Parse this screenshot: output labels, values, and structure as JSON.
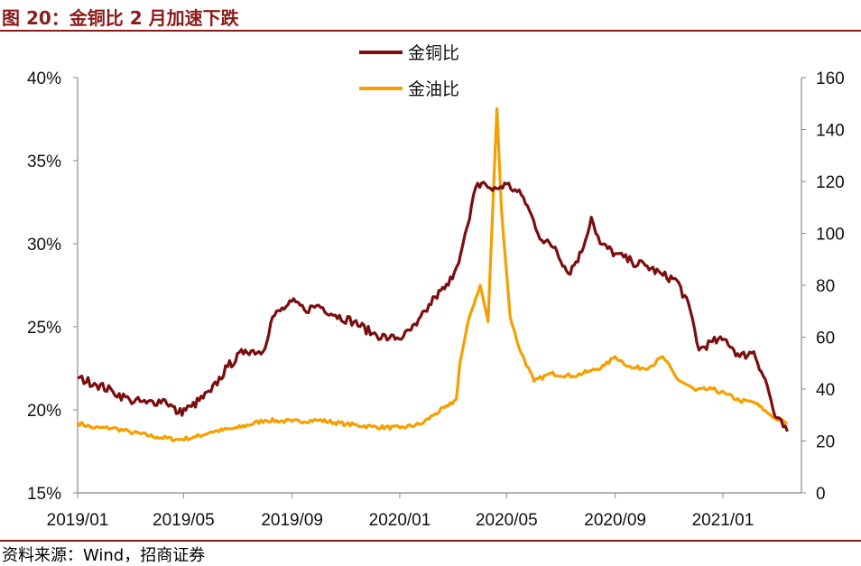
{
  "header": {
    "title": "图 20：金铜比 2 月加速下跌"
  },
  "footer": {
    "source": "资料来源：Wind，招商证券"
  },
  "colors": {
    "accent": "#8B1A1A",
    "gold_copper": "#7B0E0E",
    "gold_oil": "#F5A000"
  },
  "chart_data": {
    "type": "line",
    "x_ticks": [
      "2019/01",
      "2019/05",
      "2019/09",
      "2020/01",
      "2020/05",
      "2020/09",
      "2021/01"
    ],
    "x_range": [
      "2019-01-01",
      "2021-03-31"
    ],
    "y_left": {
      "ticks": [
        "15%",
        "20%",
        "25%",
        "30%",
        "35%",
        "40%"
      ],
      "range": [
        15,
        40
      ]
    },
    "y_right": {
      "ticks": [
        "0",
        "20",
        "40",
        "60",
        "80",
        "100",
        "120",
        "140",
        "160"
      ],
      "range": [
        0,
        160
      ]
    },
    "legend": {
      "position": "top-center"
    },
    "series": [
      {
        "name": "金铜比",
        "axis": "left",
        "points": [
          [
            "2019-01-01",
            21.9
          ],
          [
            "2019-01-20",
            21.6
          ],
          [
            "2019-02-10",
            21.1
          ],
          [
            "2019-03-01",
            20.6
          ],
          [
            "2019-03-20",
            20.4
          ],
          [
            "2019-04-10",
            20.6
          ],
          [
            "2019-04-25",
            19.8
          ],
          [
            "2019-05-10",
            20.2
          ],
          [
            "2019-06-01",
            21.1
          ],
          [
            "2019-06-20",
            22.6
          ],
          [
            "2019-07-10",
            23.6
          ],
          [
            "2019-07-30",
            23.5
          ],
          [
            "2019-08-10",
            25.6
          ],
          [
            "2019-08-25",
            26.2
          ],
          [
            "2019-09-05",
            26.5
          ],
          [
            "2019-09-15",
            26.0
          ],
          [
            "2019-10-01",
            26.3
          ],
          [
            "2019-10-20",
            25.7
          ],
          [
            "2019-11-10",
            25.3
          ],
          [
            "2019-12-01",
            24.6
          ],
          [
            "2019-12-20",
            24.3
          ],
          [
            "2020-01-05",
            24.4
          ],
          [
            "2020-01-20",
            25.1
          ],
          [
            "2020-02-10",
            26.8
          ],
          [
            "2020-02-25",
            27.5
          ],
          [
            "2020-03-10",
            29.4
          ],
          [
            "2020-03-20",
            31.5
          ],
          [
            "2020-03-27",
            33.4
          ],
          [
            "2020-04-05",
            33.7
          ],
          [
            "2020-04-15",
            33.2
          ],
          [
            "2020-05-01",
            33.6
          ],
          [
            "2020-05-20",
            32.8
          ],
          [
            "2020-06-10",
            30.2
          ],
          [
            "2020-06-25",
            29.8
          ],
          [
            "2020-07-10",
            28.2
          ],
          [
            "2020-07-25",
            29.5
          ],
          [
            "2020-08-05",
            31.6
          ],
          [
            "2020-08-15",
            30.0
          ],
          [
            "2020-09-01",
            29.4
          ],
          [
            "2020-09-20",
            28.9
          ],
          [
            "2020-10-05",
            28.7
          ],
          [
            "2020-10-25",
            28.1
          ],
          [
            "2020-11-10",
            27.8
          ],
          [
            "2020-11-25",
            26.0
          ],
          [
            "2020-12-05",
            23.6
          ],
          [
            "2020-12-20",
            24.1
          ],
          [
            "2021-01-05",
            24.2
          ],
          [
            "2021-01-20",
            23.2
          ],
          [
            "2021-02-05",
            23.5
          ],
          [
            "2021-02-20",
            21.5
          ],
          [
            "2021-03-01",
            19.6
          ],
          [
            "2021-03-15",
            18.7
          ]
        ]
      },
      {
        "name": "金油比",
        "axis": "right",
        "points": [
          [
            "2019-01-01",
            27.0
          ],
          [
            "2019-01-20",
            25.0
          ],
          [
            "2019-02-10",
            25.0
          ],
          [
            "2019-03-01",
            23.5
          ],
          [
            "2019-04-01",
            21.5
          ],
          [
            "2019-04-25",
            20.5
          ],
          [
            "2019-05-15",
            21.5
          ],
          [
            "2019-06-01",
            23.5
          ],
          [
            "2019-07-01",
            25.0
          ],
          [
            "2019-08-01",
            28.0
          ],
          [
            "2019-09-01",
            27.5
          ],
          [
            "2019-10-01",
            28.0
          ],
          [
            "2019-11-01",
            26.5
          ],
          [
            "2019-12-01",
            25.5
          ],
          [
            "2020-01-01",
            25.0
          ],
          [
            "2020-01-25",
            26.5
          ],
          [
            "2020-02-10",
            30.5
          ],
          [
            "2020-02-25",
            33.5
          ],
          [
            "2020-03-05",
            36.0
          ],
          [
            "2020-03-09",
            50.0
          ],
          [
            "2020-03-20",
            68.0
          ],
          [
            "2020-04-01",
            80.0
          ],
          [
            "2020-04-10",
            66.0
          ],
          [
            "2020-04-20",
            148.0
          ],
          [
            "2020-04-25",
            110.0
          ],
          [
            "2020-05-05",
            68.0
          ],
          [
            "2020-05-15",
            56.0
          ],
          [
            "2020-06-01",
            43.0
          ],
          [
            "2020-06-20",
            46.0
          ],
          [
            "2020-07-15",
            45.0
          ],
          [
            "2020-08-05",
            47.0
          ],
          [
            "2020-08-20",
            49.0
          ],
          [
            "2020-09-01",
            52.5
          ],
          [
            "2020-09-20",
            48.0
          ],
          [
            "2020-10-10",
            48.5
          ],
          [
            "2020-10-25",
            52.5
          ],
          [
            "2020-11-10",
            44.0
          ],
          [
            "2020-12-01",
            39.5
          ],
          [
            "2020-12-20",
            40.0
          ],
          [
            "2021-01-05",
            38.0
          ],
          [
            "2021-01-20",
            35.5
          ],
          [
            "2021-02-05",
            35.0
          ],
          [
            "2021-02-20",
            31.0
          ],
          [
            "2021-03-05",
            28.0
          ],
          [
            "2021-03-15",
            27.0
          ]
        ]
      }
    ]
  }
}
